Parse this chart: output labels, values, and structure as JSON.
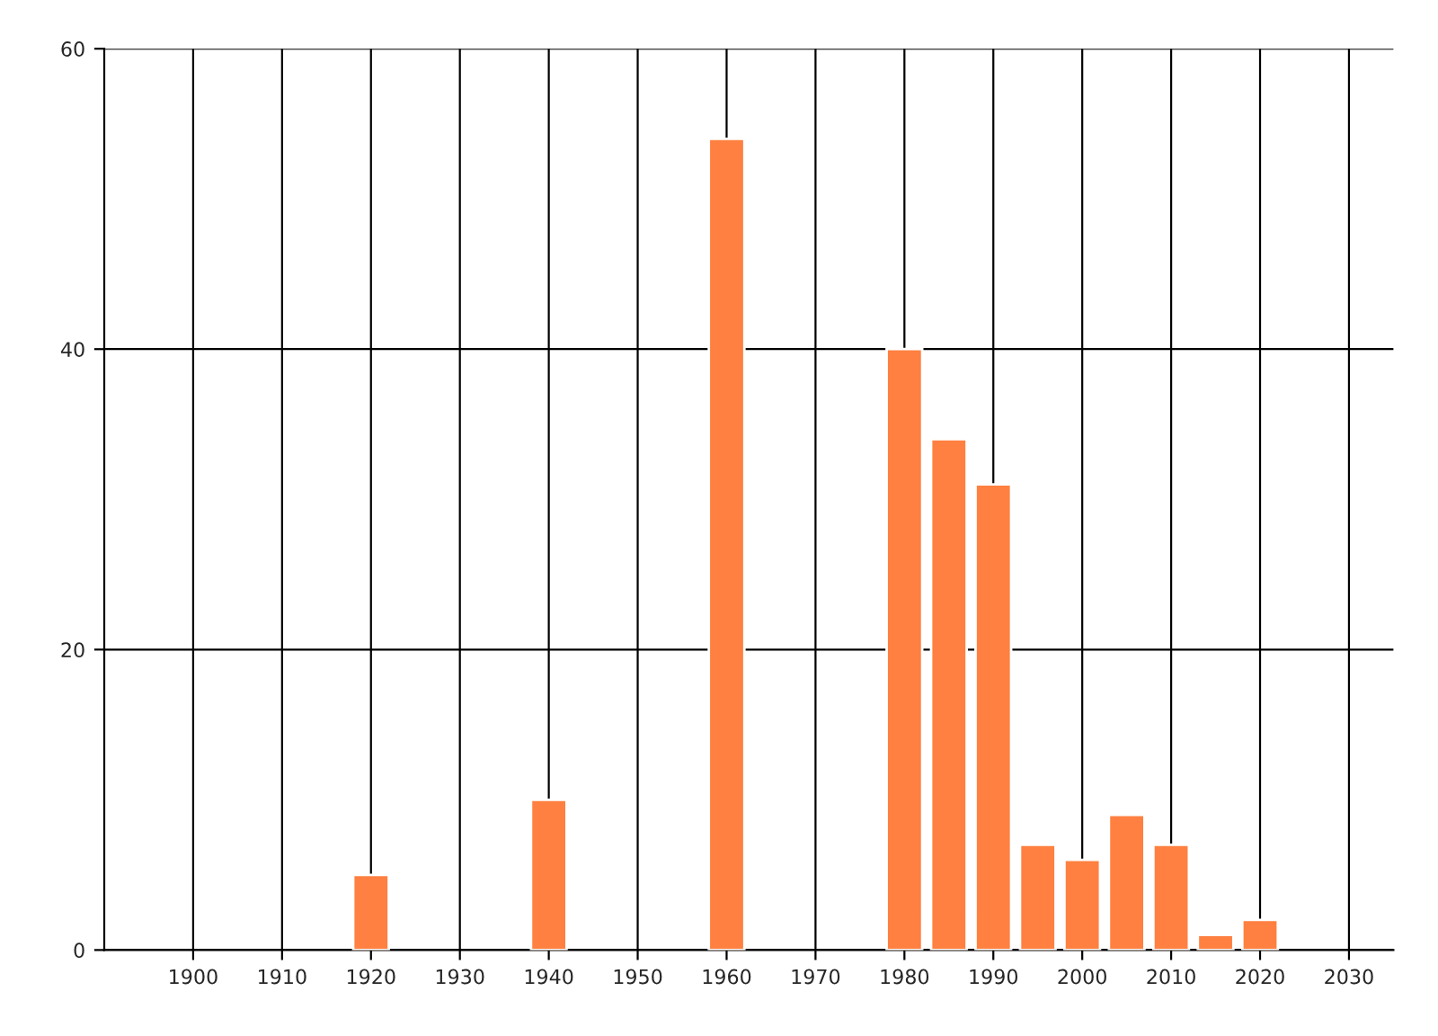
{
  "chart_data": {
    "type": "bar",
    "x": [
      1920,
      1940,
      1960,
      1980,
      1985,
      1990,
      1995,
      2000,
      2005,
      2010,
      2015,
      2020
    ],
    "values": [
      5,
      10,
      54,
      40,
      34,
      31,
      7,
      6,
      9,
      7,
      1,
      2
    ],
    "color": "#ff8040",
    "xlim": [
      1890,
      2035
    ],
    "xticks": [
      1900,
      1910,
      1920,
      1930,
      1940,
      1950,
      1960,
      1970,
      1980,
      1990,
      2000,
      2010,
      2020,
      2030
    ],
    "ylim": [
      0,
      60
    ],
    "yticks": [
      0,
      20,
      40,
      60
    ],
    "grid": true
  }
}
